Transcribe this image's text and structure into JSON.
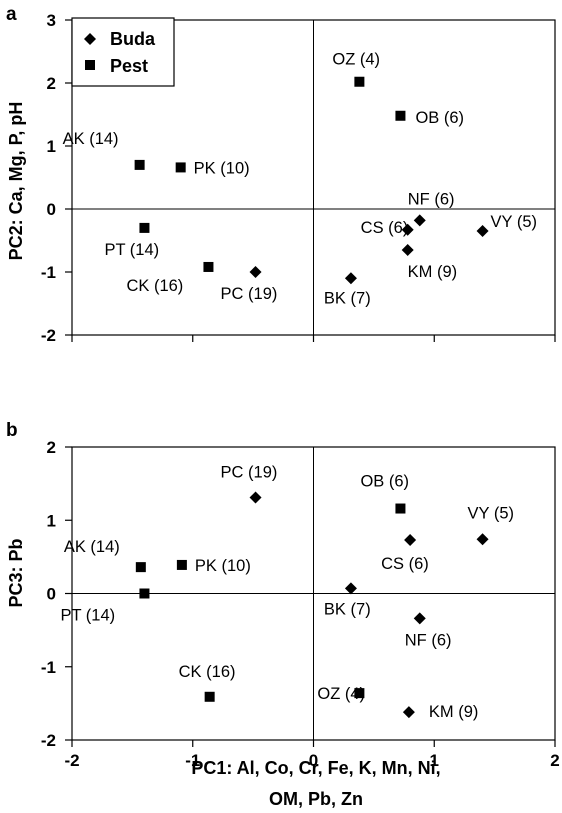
{
  "chart_data": [
    {
      "type": "scatter",
      "panel_label": "a",
      "xlim": [
        -2,
        2
      ],
      "ylim": [
        -2,
        3
      ],
      "xticks": [
        "-2",
        "-1",
        "0",
        "1",
        "2"
      ],
      "yticks": [
        "-2",
        "-1",
        "0",
        "1",
        "2",
        "3"
      ],
      "ylabel": "PC2: Ca, Mg, P, pH",
      "xlabel": "",
      "legend": {
        "placement": "top-left",
        "entries": [
          {
            "name": "Buda",
            "marker": "diamond"
          },
          {
            "name": "Pest",
            "marker": "square"
          }
        ]
      },
      "series": [
        {
          "name": "Buda",
          "marker": "diamond",
          "points": [
            {
              "label": "VY (5)",
              "x": 1.4,
              "y": -0.35
            },
            {
              "label": "NF (6)",
              "x": 0.88,
              "y": -0.18
            },
            {
              "label": "CS (6)",
              "x": 0.78,
              "y": -0.33
            },
            {
              "label": "KM (9)",
              "x": 0.78,
              "y": -0.65
            },
            {
              "label": "BK (7)",
              "x": 0.31,
              "y": -1.1
            },
            {
              "label": "PC (19)",
              "x": -0.48,
              "y": -1.0
            }
          ]
        },
        {
          "name": "Pest",
          "marker": "square",
          "points": [
            {
              "label": "OZ (4)",
              "x": 0.38,
              "y": 2.02
            },
            {
              "label": "OB (6)",
              "x": 0.72,
              "y": 1.48
            },
            {
              "label": "AK (14)",
              "x": -1.44,
              "y": 0.7
            },
            {
              "label": "PK (10)",
              "x": -1.1,
              "y": 0.66
            },
            {
              "label": "PT (14)",
              "x": -1.4,
              "y": -0.3
            },
            {
              "label": "CK (16)",
              "x": -0.87,
              "y": -0.92
            }
          ]
        }
      ]
    },
    {
      "type": "scatter",
      "panel_label": "b",
      "xlim": [
        -2,
        2
      ],
      "ylim": [
        -2,
        2
      ],
      "xticks": [
        "-2",
        "-1",
        "0",
        "1",
        "2"
      ],
      "yticks": [
        "-2",
        "-1",
        "0",
        "1",
        "2"
      ],
      "ylabel": "PC3: Pb",
      "xlabel": "PC1: Al, Co, Cr, Fe, K, Mn, Ni, OM, Pb, Zn",
      "xlabel_lines": [
        "PC1: Al, Co, Cr, Fe, K, Mn, Ni,",
        "OM, Pb, Zn"
      ],
      "series": [
        {
          "name": "Buda",
          "marker": "diamond",
          "points": [
            {
              "label": "PC (19)",
              "x": -0.48,
              "y": 1.31
            },
            {
              "label": "CS (6)",
              "x": 0.8,
              "y": 0.73
            },
            {
              "label": "VY (5)",
              "x": 1.4,
              "y": 0.74
            },
            {
              "label": "BK (7)",
              "x": 0.31,
              "y": 0.07
            },
            {
              "label": "NF (6)",
              "x": 0.88,
              "y": -0.34
            },
            {
              "label": "KM (9)",
              "x": 0.79,
              "y": -1.62
            }
          ]
        },
        {
          "name": "Pest",
          "marker": "square",
          "points": [
            {
              "label": "OB (6)",
              "x": 0.72,
              "y": 1.16
            },
            {
              "label": "AK (14)",
              "x": -1.43,
              "y": 0.36
            },
            {
              "label": "PK (10)",
              "x": -1.09,
              "y": 0.39
            },
            {
              "label": "PT (14)",
              "x": -1.4,
              "y": 0.0
            },
            {
              "label": "CK (16)",
              "x": -0.86,
              "y": -1.41
            },
            {
              "label": "OZ (4)",
              "x": 0.38,
              "y": -1.36
            }
          ]
        }
      ]
    }
  ]
}
